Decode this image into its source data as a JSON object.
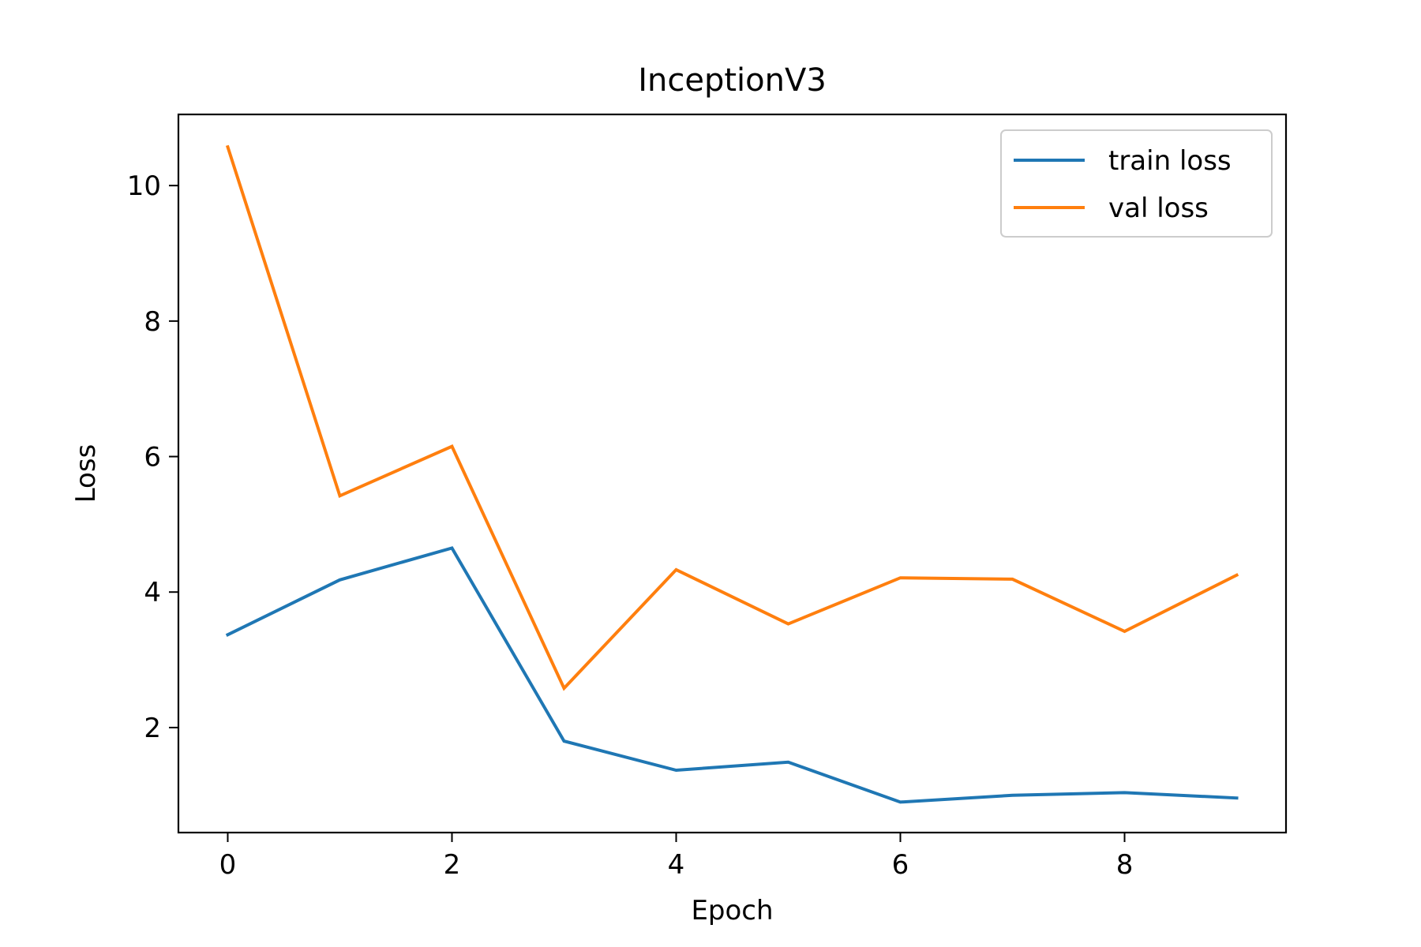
{
  "chart_data": {
    "type": "line",
    "title": "InceptionV3",
    "xlabel": "Epoch",
    "ylabel": "Loss",
    "x": [
      0,
      1,
      2,
      3,
      4,
      5,
      6,
      7,
      8,
      9
    ],
    "xlim": [
      -0.44,
      9.44
    ],
    "ylim": [
      0.45,
      11.05
    ],
    "xticks": [
      0,
      2,
      4,
      6,
      8
    ],
    "yticks": [
      2,
      4,
      6,
      8,
      10
    ],
    "xtick_labels": [
      "0",
      "2",
      "4",
      "6",
      "8"
    ],
    "ytick_labels": [
      "2",
      "4",
      "6",
      "8",
      "10"
    ],
    "grid": false,
    "legend_position": "top-right",
    "series": [
      {
        "name": "train loss",
        "color": "#1f77b4",
        "values": [
          3.37,
          4.18,
          4.65,
          1.8,
          1.37,
          1.49,
          0.9,
          1.0,
          1.04,
          0.96
        ]
      },
      {
        "name": "val loss",
        "color": "#ff7f0e",
        "values": [
          10.57,
          5.42,
          6.15,
          2.58,
          4.33,
          3.53,
          4.21,
          4.19,
          3.42,
          4.25
        ]
      }
    ]
  }
}
